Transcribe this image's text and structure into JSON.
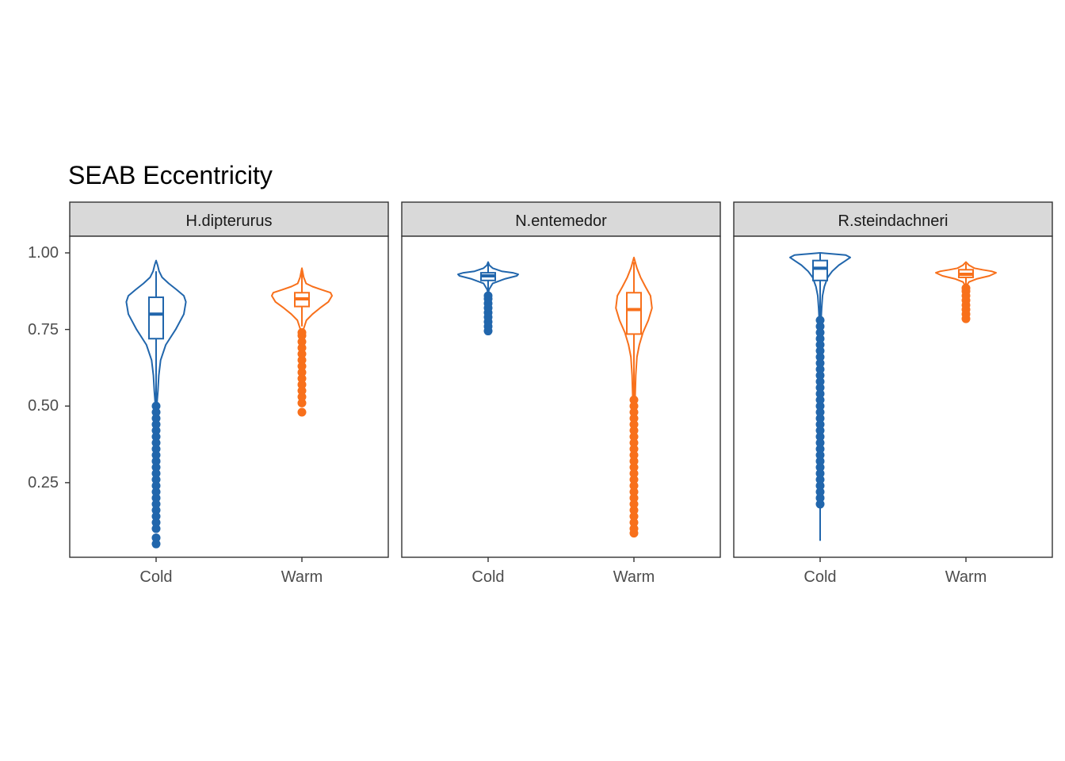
{
  "chart_data": {
    "type": "violin",
    "title": "SEAB Eccentricity",
    "xlabel": "",
    "ylabel": "",
    "categories": [
      "Cold",
      "Warm"
    ],
    "ylim": [
      0.01,
      1.06
    ],
    "yticks": [
      "0.25",
      "0.50",
      "0.75",
      "1.00"
    ],
    "yticks_values": [
      0.25,
      0.5,
      0.75,
      1.0
    ],
    "grid": false,
    "legend": "none",
    "colors": {
      "Cold": "#2166ac",
      "Warm": "#f8701b"
    },
    "panels": [
      {
        "name": "H.dipterurus",
        "groups": [
          {
            "name": "Cold",
            "min": 0.05,
            "max": 0.975,
            "q1": 0.72,
            "median": 0.8,
            "q3": 0.855,
            "whisker_low": 0.51,
            "whisker_high": 0.94,
            "violin": [
              [
                0.51,
                0.03
              ],
              [
                0.55,
                0.06
              ],
              [
                0.6,
                0.09
              ],
              [
                0.65,
                0.15
              ],
              [
                0.7,
                0.32
              ],
              [
                0.75,
                0.65
              ],
              [
                0.8,
                0.92
              ],
              [
                0.84,
                0.99
              ],
              [
                0.86,
                0.92
              ],
              [
                0.88,
                0.68
              ],
              [
                0.9,
                0.42
              ],
              [
                0.92,
                0.2
              ],
              [
                0.94,
                0.1
              ],
              [
                0.96,
                0.05
              ],
              [
                0.975,
                0.0
              ]
            ],
            "outliers": [
              0.05,
              0.07,
              0.1,
              0.12,
              0.14,
              0.16,
              0.18,
              0.2,
              0.22,
              0.24,
              0.26,
              0.28,
              0.3,
              0.32,
              0.34,
              0.36,
              0.38,
              0.4,
              0.42,
              0.44,
              0.46,
              0.48,
              0.5
            ]
          },
          {
            "name": "Warm",
            "min": 0.48,
            "max": 0.95,
            "q1": 0.825,
            "median": 0.85,
            "q3": 0.87,
            "whisker_low": 0.76,
            "whisker_high": 0.935,
            "violin": [
              [
                0.74,
                0.0
              ],
              [
                0.75,
                0.05
              ],
              [
                0.78,
                0.15
              ],
              [
                0.8,
                0.35
              ],
              [
                0.82,
                0.6
              ],
              [
                0.84,
                0.88
              ],
              [
                0.86,
                1.0
              ],
              [
                0.87,
                0.95
              ],
              [
                0.88,
                0.65
              ],
              [
                0.89,
                0.35
              ],
              [
                0.9,
                0.14
              ],
              [
                0.92,
                0.06
              ],
              [
                0.94,
                0.02
              ],
              [
                0.95,
                0.0
              ]
            ],
            "outliers": [
              0.48,
              0.51,
              0.53,
              0.55,
              0.57,
              0.59,
              0.61,
              0.63,
              0.65,
              0.67,
              0.69,
              0.71,
              0.73,
              0.74
            ]
          }
        ]
      },
      {
        "name": "N.entemedor",
        "groups": [
          {
            "name": "Cold",
            "min": 0.745,
            "max": 0.97,
            "q1": 0.91,
            "median": 0.925,
            "q3": 0.935,
            "whisker_low": 0.865,
            "whisker_high": 0.965,
            "violin": [
              [
                0.865,
                0.0
              ],
              [
                0.88,
                0.03
              ],
              [
                0.9,
                0.15
              ],
              [
                0.915,
                0.55
              ],
              [
                0.925,
                0.95
              ],
              [
                0.93,
                1.0
              ],
              [
                0.935,
                0.82
              ],
              [
                0.94,
                0.45
              ],
              [
                0.95,
                0.15
              ],
              [
                0.96,
                0.04
              ],
              [
                0.97,
                0.0
              ]
            ],
            "outliers": [
              0.745,
              0.76,
              0.775,
              0.79,
              0.805,
              0.82,
              0.835,
              0.85,
              0.86
            ]
          },
          {
            "name": "Warm",
            "min": 0.085,
            "max": 0.985,
            "q1": 0.735,
            "median": 0.815,
            "q3": 0.87,
            "whisker_low": 0.53,
            "whisker_high": 0.97,
            "violin": [
              [
                0.53,
                0.04
              ],
              [
                0.6,
                0.06
              ],
              [
                0.66,
                0.1
              ],
              [
                0.7,
                0.18
              ],
              [
                0.74,
                0.3
              ],
              [
                0.78,
                0.48
              ],
              [
                0.82,
                0.6
              ],
              [
                0.86,
                0.55
              ],
              [
                0.89,
                0.38
              ],
              [
                0.92,
                0.22
              ],
              [
                0.95,
                0.1
              ],
              [
                0.985,
                0.0
              ]
            ],
            "outliers": [
              0.085,
              0.1,
              0.12,
              0.14,
              0.16,
              0.18,
              0.2,
              0.22,
              0.24,
              0.26,
              0.28,
              0.3,
              0.32,
              0.34,
              0.36,
              0.38,
              0.4,
              0.42,
              0.44,
              0.46,
              0.48,
              0.5,
              0.52
            ]
          }
        ]
      },
      {
        "name": "R.steindachneri",
        "groups": [
          {
            "name": "Cold",
            "min": 0.06,
            "max": 1.0,
            "q1": 0.91,
            "median": 0.95,
            "q3": 0.975,
            "whisker_low": 0.06,
            "whisker_high": 1.0,
            "violin": [
              [
                0.78,
                0.03
              ],
              [
                0.82,
                0.05
              ],
              [
                0.86,
                0.08
              ],
              [
                0.89,
                0.14
              ],
              [
                0.92,
                0.25
              ],
              [
                0.94,
                0.4
              ],
              [
                0.96,
                0.62
              ],
              [
                0.975,
                0.85
              ],
              [
                0.985,
                1.0
              ],
              [
                0.993,
                0.85
              ],
              [
                1.0,
                0.0
              ]
            ],
            "outliers": [
              0.18,
              0.2,
              0.22,
              0.24,
              0.26,
              0.28,
              0.3,
              0.32,
              0.34,
              0.36,
              0.38,
              0.4,
              0.42,
              0.44,
              0.46,
              0.48,
              0.5,
              0.52,
              0.54,
              0.56,
              0.58,
              0.6,
              0.62,
              0.64,
              0.66,
              0.68,
              0.7,
              0.72,
              0.74,
              0.76,
              0.78
            ]
          },
          {
            "name": "Warm",
            "min": 0.785,
            "max": 0.97,
            "q1": 0.92,
            "median": 0.93,
            "q3": 0.945,
            "whisker_low": 0.89,
            "whisker_high": 0.965,
            "violin": [
              [
                0.89,
                0.0
              ],
              [
                0.905,
                0.1
              ],
              [
                0.915,
                0.35
              ],
              [
                0.925,
                0.78
              ],
              [
                0.935,
                1.0
              ],
              [
                0.94,
                0.85
              ],
              [
                0.945,
                0.55
              ],
              [
                0.95,
                0.28
              ],
              [
                0.96,
                0.1
              ],
              [
                0.97,
                0.0
              ]
            ],
            "outliers": [
              0.785,
              0.8,
              0.815,
              0.83,
              0.845,
              0.86,
              0.875,
              0.885
            ]
          }
        ]
      }
    ]
  }
}
